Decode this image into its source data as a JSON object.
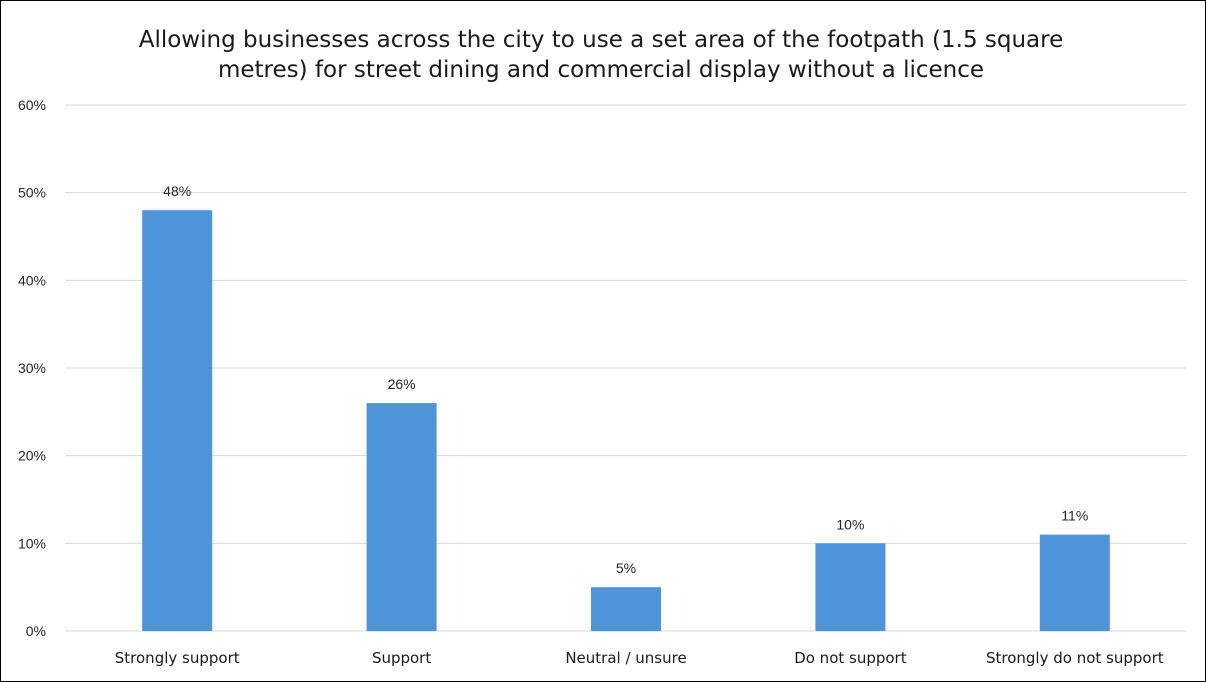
{
  "chart_data": {
    "type": "bar",
    "title": "Allowing businesses across the city to use a set area of the footpath (1.5 square metres) for street dining and commercial display without a licence",
    "categories": [
      "Strongly support",
      "Support",
      "Neutral / unsure",
      "Do not support",
      "Strongly do not support"
    ],
    "values": [
      48,
      26,
      5,
      10,
      11
    ],
    "data_labels": [
      "48%",
      "26%",
      "5%",
      "10%",
      "11%"
    ],
    "y_ticks": [
      "0%",
      "10%",
      "20%",
      "30%",
      "40%",
      "50%",
      "60%"
    ],
    "ylim": [
      0,
      60
    ],
    "xlabel": "",
    "ylabel": "",
    "grid": true,
    "legend": "none",
    "bar_color": "#4f94db",
    "grid_color": "#d9d9d9"
  }
}
